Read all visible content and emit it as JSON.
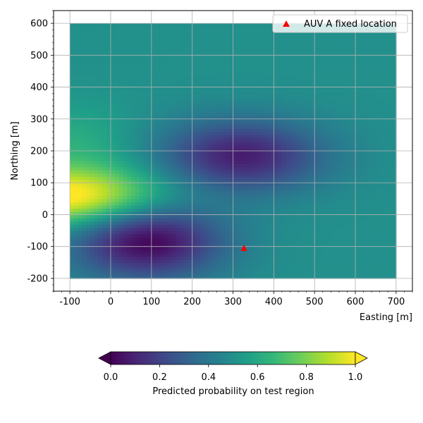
{
  "chart_data": {
    "type": "heatmap",
    "title": "",
    "xlabel": "Easting [m]",
    "ylabel": "Northing [m]",
    "xlim": [
      -140,
      740
    ],
    "ylim": [
      -240,
      640
    ],
    "x_ticks": [
      -100,
      0,
      100,
      200,
      300,
      400,
      500,
      600,
      700
    ],
    "y_ticks": [
      -200,
      -100,
      0,
      100,
      200,
      300,
      400,
      500,
      600
    ],
    "x_tick_labels": [
      "-100",
      "0",
      "100",
      "200",
      "300",
      "400",
      "500",
      "600",
      "700"
    ],
    "y_tick_labels": [
      "-200",
      "-100",
      "0",
      "100",
      "200",
      "300",
      "400",
      "500",
      "600"
    ],
    "grid": true,
    "field": {
      "x_range": [
        -100,
        700
      ],
      "y_range": [
        -200,
        600
      ],
      "background": 0.5,
      "components": [
        {
          "x": 90,
          "y": -80,
          "sx": 130,
          "sy": 85,
          "amp": -0.5
        },
        {
          "x": 320,
          "y": 185,
          "sx": 140,
          "sy": 80,
          "amp": -0.42
        },
        {
          "x": -110,
          "y": 55,
          "sx": 170,
          "sy": 65,
          "amp": 0.55
        },
        {
          "x": -90,
          "y": 220,
          "sx": 110,
          "sy": 90,
          "amp": 0.12
        }
      ]
    },
    "colormap": "viridis",
    "colorbar": {
      "label": "Predicted probability on test region",
      "min": 0.0,
      "max": 1.0,
      "ticks": [
        "0.0",
        "0.2",
        "0.4",
        "0.6",
        "0.8",
        "1.0"
      ],
      "orientation": "horizontal",
      "extend": "both"
    },
    "markers": [
      {
        "name": "AUV A fixed location",
        "x": 327,
        "y": -105,
        "shape": "triangle",
        "color": "#ff0000"
      }
    ],
    "legend": {
      "placement": "top-right",
      "entries": [
        "AUV A fixed location"
      ]
    }
  }
}
